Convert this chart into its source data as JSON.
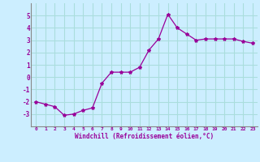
{
  "x": [
    0,
    1,
    2,
    3,
    4,
    5,
    6,
    7,
    8,
    9,
    10,
    11,
    12,
    13,
    14,
    15,
    16,
    17,
    18,
    19,
    20,
    21,
    22,
    23
  ],
  "y": [
    -2.0,
    -2.2,
    -2.4,
    -3.1,
    -3.0,
    -2.7,
    -2.5,
    -0.5,
    0.4,
    0.4,
    0.4,
    0.8,
    2.2,
    3.1,
    5.1,
    4.0,
    3.5,
    3.0,
    3.1,
    3.1,
    3.1,
    3.1,
    2.9,
    2.75
  ],
  "line_color": "#990099",
  "marker": "*",
  "marker_size": 3,
  "bg_color": "#cceeff",
  "grid_color": "#aadddd",
  "spine_color": "#888888",
  "xlabel": "Windchill (Refroidissement éolien,°C)",
  "xlabel_color": "#990099",
  "tick_color": "#990099",
  "ylim": [
    -4,
    6
  ],
  "xlim": [
    -0.5,
    23.5
  ],
  "yticks": [
    -3,
    -2,
    -1,
    0,
    1,
    2,
    3,
    4,
    5
  ],
  "xticks": [
    0,
    1,
    2,
    3,
    4,
    5,
    6,
    7,
    8,
    9,
    10,
    11,
    12,
    13,
    14,
    15,
    16,
    17,
    18,
    19,
    20,
    21,
    22,
    23
  ],
  "xtick_labels": [
    "0",
    "1",
    "2",
    "3",
    "4",
    "5",
    "6",
    "7",
    "8",
    "9",
    "10",
    "11",
    "12",
    "13",
    "14",
    "15",
    "16",
    "17",
    "18",
    "19",
    "20",
    "21",
    "22",
    "23"
  ]
}
